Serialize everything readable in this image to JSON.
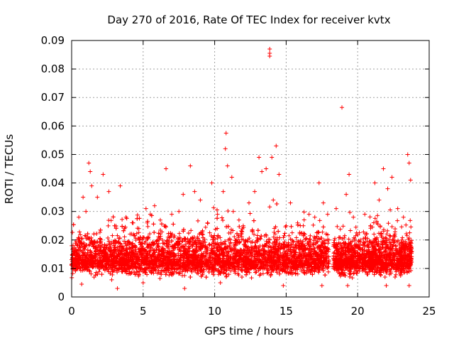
{
  "chart_data": {
    "type": "scatter",
    "title": "Day 270 of 2016, Rate Of TEC Index for receiver kvtx",
    "xlabel": "GPS time / hours",
    "ylabel": "ROTI / TECUs",
    "xlim": [
      0,
      25
    ],
    "ylim": [
      0,
      0.09
    ],
    "x_ticks": [
      0,
      5,
      10,
      15,
      20,
      25
    ],
    "x_tick_labels": [
      "0",
      "5",
      "10",
      "15",
      "20",
      "25"
    ],
    "y_ticks": [
      0,
      0.01,
      0.02,
      0.03,
      0.04,
      0.05,
      0.06,
      0.07,
      0.08,
      0.09
    ],
    "y_tick_labels": [
      "0",
      "0.01",
      "0.02",
      "0.03",
      "0.04",
      "0.05",
      "0.06",
      "0.07",
      "0.08",
      "0.09"
    ],
    "grid": true,
    "marker": "+",
    "marker_color": "#ff0000",
    "series": [
      {
        "name": "ROTI",
        "points": [
          [
            0.2,
            0.016
          ],
          [
            0.5,
            0.028
          ],
          [
            0.8,
            0.035
          ],
          [
            1.0,
            0.03
          ],
          [
            1.2,
            0.047
          ],
          [
            1.3,
            0.044
          ],
          [
            1.4,
            0.039
          ],
          [
            1.8,
            0.035
          ],
          [
            2.2,
            0.043
          ],
          [
            2.6,
            0.037
          ],
          [
            3.0,
            0.025
          ],
          [
            3.4,
            0.039
          ],
          [
            3.2,
            0.003
          ],
          [
            3.8,
            0.028
          ],
          [
            4.3,
            0.026
          ],
          [
            4.7,
            0.024
          ],
          [
            5.2,
            0.031
          ],
          [
            5.5,
            0.029
          ],
          [
            5.8,
            0.032
          ],
          [
            6.2,
            0.027
          ],
          [
            6.6,
            0.045
          ],
          [
            7.0,
            0.029
          ],
          [
            7.5,
            0.03
          ],
          [
            7.8,
            0.036
          ],
          [
            8.3,
            0.046
          ],
          [
            8.6,
            0.037
          ],
          [
            9.0,
            0.034
          ],
          [
            9.5,
            0.026
          ],
          [
            9.8,
            0.04
          ],
          [
            10.2,
            0.029
          ],
          [
            10.6,
            0.037
          ],
          [
            10.8,
            0.0575
          ],
          [
            10.75,
            0.052
          ],
          [
            10.9,
            0.046
          ],
          [
            11.2,
            0.042
          ],
          [
            11.3,
            0.03
          ],
          [
            11.7,
            0.027
          ],
          [
            12.0,
            0.025
          ],
          [
            12.4,
            0.033
          ],
          [
            12.8,
            0.037
          ],
          [
            13.1,
            0.049
          ],
          [
            13.3,
            0.044
          ],
          [
            13.6,
            0.045
          ],
          [
            13.85,
            0.087
          ],
          [
            13.85,
            0.0855
          ],
          [
            13.85,
            0.0845
          ],
          [
            14.0,
            0.049
          ],
          [
            14.3,
            0.053
          ],
          [
            14.5,
            0.043
          ],
          [
            14.1,
            0.034
          ],
          [
            15.0,
            0.025
          ],
          [
            15.3,
            0.033
          ],
          [
            15.8,
            0.026
          ],
          [
            16.2,
            0.025
          ],
          [
            16.6,
            0.029
          ],
          [
            17.0,
            0.028
          ],
          [
            17.3,
            0.04
          ],
          [
            17.6,
            0.033
          ],
          [
            17.9,
            0.029
          ],
          [
            18.5,
            0.031
          ],
          [
            18.9,
            0.0665
          ],
          [
            19.4,
            0.043
          ],
          [
            19.2,
            0.036
          ],
          [
            19.7,
            0.028
          ],
          [
            20.5,
            0.029
          ],
          [
            20.9,
            0.025
          ],
          [
            21.2,
            0.04
          ],
          [
            21.5,
            0.034
          ],
          [
            21.8,
            0.045
          ],
          [
            22.1,
            0.038
          ],
          [
            22.4,
            0.042
          ],
          [
            22.8,
            0.031
          ],
          [
            23.2,
            0.028
          ],
          [
            23.5,
            0.05
          ],
          [
            23.6,
            0.047
          ],
          [
            23.7,
            0.041
          ],
          [
            0.7,
            0.0045
          ],
          [
            2.8,
            0.006
          ],
          [
            5.0,
            0.005
          ],
          [
            7.9,
            0.003
          ],
          [
            10.4,
            0.005
          ],
          [
            14.8,
            0.004
          ],
          [
            17.5,
            0.004
          ],
          [
            19.3,
            0.004
          ],
          [
            22.0,
            0.004
          ],
          [
            23.6,
            0.004
          ]
        ],
        "dense_segments": [
          {
            "x_start": 0.0,
            "x_end": 18.0,
            "y_low": 0.006,
            "y_mid": 0.013,
            "y_high": 0.025
          },
          {
            "x_start": 18.3,
            "x_end": 20.2,
            "y_low": 0.006,
            "y_mid": 0.013,
            "y_high": 0.024
          },
          {
            "x_start": 20.3,
            "x_end": 23.8,
            "y_low": 0.006,
            "y_mid": 0.013,
            "y_high": 0.025
          }
        ]
      }
    ]
  }
}
